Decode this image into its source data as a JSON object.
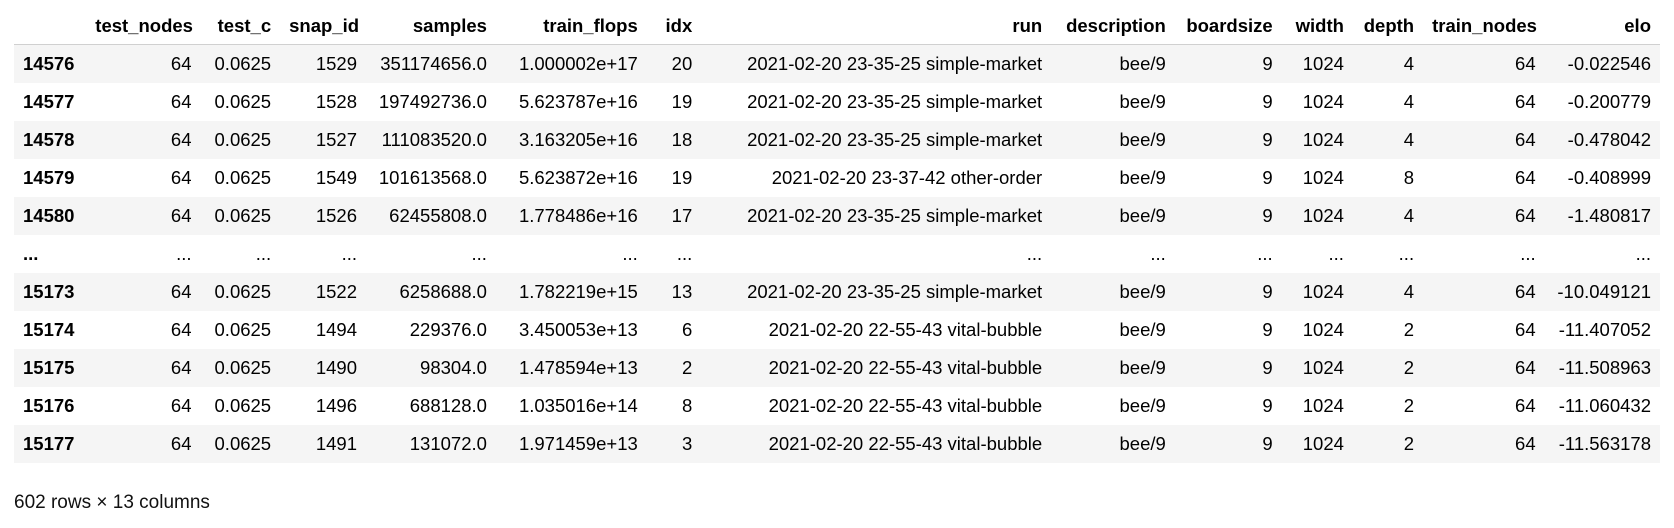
{
  "table": {
    "columns": [
      "",
      "test_nodes",
      "test_c",
      "snap_id",
      "samples",
      "train_flops",
      "idx",
      "run",
      "description",
      "boardsize",
      "width",
      "depth",
      "train_nodes",
      "elo"
    ],
    "rows": [
      [
        "14576",
        "64",
        "0.0625",
        "1529",
        "351174656.0",
        "1.000002e+17",
        "20",
        "2021-02-20 23-35-25 simple-market",
        "bee/9",
        "9",
        "1024",
        "4",
        "64",
        "-0.022546"
      ],
      [
        "14577",
        "64",
        "0.0625",
        "1528",
        "197492736.0",
        "5.623787e+16",
        "19",
        "2021-02-20 23-35-25 simple-market",
        "bee/9",
        "9",
        "1024",
        "4",
        "64",
        "-0.200779"
      ],
      [
        "14578",
        "64",
        "0.0625",
        "1527",
        "111083520.0",
        "3.163205e+16",
        "18",
        "2021-02-20 23-35-25 simple-market",
        "bee/9",
        "9",
        "1024",
        "4",
        "64",
        "-0.478042"
      ],
      [
        "14579",
        "64",
        "0.0625",
        "1549",
        "101613568.0",
        "5.623872e+16",
        "19",
        "2021-02-20 23-37-42 other-order",
        "bee/9",
        "9",
        "1024",
        "8",
        "64",
        "-0.408999"
      ],
      [
        "14580",
        "64",
        "0.0625",
        "1526",
        "62455808.0",
        "1.778486e+16",
        "17",
        "2021-02-20 23-35-25 simple-market",
        "bee/9",
        "9",
        "1024",
        "4",
        "64",
        "-1.480817"
      ],
      [
        "...",
        "...",
        "...",
        "...",
        "...",
        "...",
        "...",
        "...",
        "...",
        "...",
        "...",
        "...",
        "...",
        "..."
      ],
      [
        "15173",
        "64",
        "0.0625",
        "1522",
        "6258688.0",
        "1.782219e+15",
        "13",
        "2021-02-20 23-35-25 simple-market",
        "bee/9",
        "9",
        "1024",
        "4",
        "64",
        "-10.049121"
      ],
      [
        "15174",
        "64",
        "0.0625",
        "1494",
        "229376.0",
        "3.450053e+13",
        "6",
        "2021-02-20 22-55-43 vital-bubble",
        "bee/9",
        "9",
        "1024",
        "2",
        "64",
        "-11.407052"
      ],
      [
        "15175",
        "64",
        "0.0625",
        "1490",
        "98304.0",
        "1.478594e+13",
        "2",
        "2021-02-20 22-55-43 vital-bubble",
        "bee/9",
        "9",
        "1024",
        "2",
        "64",
        "-11.508963"
      ],
      [
        "15176",
        "64",
        "0.0625",
        "1496",
        "688128.0",
        "1.035016e+14",
        "8",
        "2021-02-20 22-55-43 vital-bubble",
        "bee/9",
        "9",
        "1024",
        "2",
        "64",
        "-11.060432"
      ],
      [
        "15177",
        "64",
        "0.0625",
        "1491",
        "131072.0",
        "1.971459e+13",
        "3",
        "2021-02-20 22-55-43 vital-bubble",
        "bee/9",
        "9",
        "1024",
        "2",
        "64",
        "-11.563178"
      ]
    ]
  },
  "footer": {
    "shape": "602 rows × 13 columns"
  }
}
